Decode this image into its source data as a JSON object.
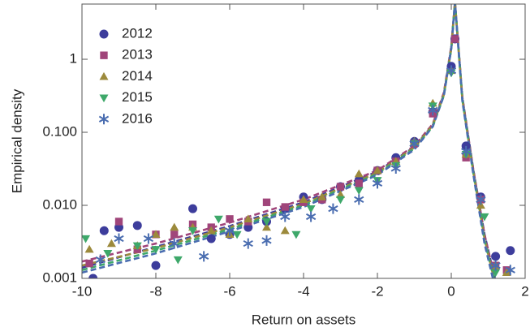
{
  "chart_data": {
    "type": "scatter",
    "x_label": "Return on assets",
    "y_label": "Empirical density",
    "y_log": true,
    "grid": false,
    "legend": "top-left",
    "xlim": [
      -10,
      2
    ],
    "xticks": [
      -10,
      -8,
      -6,
      -4,
      -2,
      0,
      2
    ],
    "ylim": [
      0.001,
      5.7
    ],
    "yticks": [
      0.001,
      {
        "value": 0.01,
        "label": "0.010"
      },
      {
        "value": 0.1,
        "label": "0.100"
      },
      1
    ],
    "fit_x": [
      -10,
      -8,
      -6,
      -4,
      -2,
      -1,
      -0.5,
      -0.2,
      0,
      0.1,
      0.3,
      0.6,
      0.9,
      1.2
    ],
    "series": [
      {
        "name": "2012",
        "marker": "circle",
        "color": "#3d3d9c",
        "x": [
          -9.7,
          -9.4,
          -9.0,
          -8.5,
          -8.0,
          -7.0,
          -6.5,
          -6.0,
          -5.5,
          -5.0,
          -4.5,
          -4.0,
          -3.5,
          -3.0,
          -2.5,
          -2.0,
          -1.5,
          -1.0,
          -0.5,
          0.0,
          0.1,
          0.4,
          0.8,
          1.2,
          1.6
        ],
        "values": [
          0.001,
          0.0045,
          0.005,
          0.0053,
          0.0015,
          0.009,
          0.0035,
          0.004,
          0.005,
          0.006,
          0.009,
          0.013,
          0.012,
          0.018,
          0.022,
          0.03,
          0.045,
          0.075,
          0.19,
          0.8,
          1.9,
          0.065,
          0.013,
          0.002,
          0.0024
        ],
        "fit_values": [
          0.0014,
          0.0027,
          0.0052,
          0.011,
          0.029,
          0.063,
          0.125,
          0.33,
          1.4,
          6,
          0.3,
          0.03,
          0.004,
          0.0009
        ]
      },
      {
        "name": "2013",
        "marker": "square",
        "color": "#a0457a",
        "x": [
          -9.8,
          -9.0,
          -8.5,
          -8.0,
          -7.5,
          -7.0,
          -6.5,
          -6.0,
          -5.5,
          -5.0,
          -4.5,
          -4.0,
          -3.5,
          -3.0,
          -2.5,
          -2.0,
          -1.5,
          -1.0,
          -0.5,
          0.1,
          0.4,
          0.8,
          1.2,
          1.5
        ],
        "values": [
          0.0016,
          0.006,
          0.0025,
          0.004,
          0.004,
          0.0055,
          0.005,
          0.0065,
          0.006,
          0.011,
          0.0095,
          0.011,
          0.012,
          0.018,
          0.02,
          0.03,
          0.04,
          0.07,
          0.18,
          1.9,
          0.045,
          0.012,
          0.0015,
          0.0013
        ],
        "fit_values": [
          0.0017,
          0.003,
          0.0058,
          0.012,
          0.03,
          0.065,
          0.13,
          0.35,
          1.5,
          6,
          0.3,
          0.03,
          0.004,
          0.0009
        ]
      },
      {
        "name": "2014",
        "marker": "triangle-up",
        "color": "#9c8a3c",
        "x": [
          -9.8,
          -9.2,
          -8.5,
          -8.0,
          -7.5,
          -7.0,
          -6.5,
          -6.0,
          -5.5,
          -5.0,
          -4.5,
          -4.0,
          -3.5,
          -3.0,
          -2.5,
          -2.0,
          -1.5,
          -1.0,
          -0.5,
          0.0,
          0.4,
          0.8,
          1.2,
          1.5
        ],
        "values": [
          0.0025,
          0.003,
          0.0028,
          0.004,
          0.005,
          0.005,
          0.0045,
          0.004,
          0.0065,
          0.005,
          0.0045,
          0.012,
          0.013,
          0.014,
          0.027,
          0.03,
          0.04,
          0.075,
          0.25,
          0.7,
          0.05,
          0.01,
          0.0015,
          0.0012
        ],
        "fit_values": [
          0.0015,
          0.0026,
          0.005,
          0.0105,
          0.028,
          0.062,
          0.125,
          0.33,
          1.4,
          6,
          0.28,
          0.028,
          0.0035,
          0.0008
        ]
      },
      {
        "name": "2015",
        "marker": "triangle-down",
        "color": "#3ea86a",
        "x": [
          -9.9,
          -9.3,
          -8.5,
          -8.0,
          -7.4,
          -7.0,
          -6.3,
          -5.8,
          -5.0,
          -4.2,
          -3.8,
          -3.0,
          -2.5,
          -2.0,
          -1.5,
          -1.0,
          -0.5,
          0.0,
          0.4,
          0.9,
          1.2
        ],
        "values": [
          0.0035,
          0.0022,
          0.0028,
          0.0025,
          0.0018,
          0.0045,
          0.0065,
          0.004,
          0.006,
          0.004,
          0.009,
          0.012,
          0.016,
          0.022,
          0.035,
          0.07,
          0.23,
          0.65,
          0.05,
          0.007,
          0.0012
        ],
        "fit_values": [
          0.0013,
          0.0024,
          0.0047,
          0.01,
          0.027,
          0.06,
          0.12,
          0.32,
          1.4,
          6,
          0.28,
          0.027,
          0.0033,
          0.0008
        ]
      },
      {
        "name": "2016",
        "marker": "star",
        "color": "#4a6db0",
        "x": [
          -9.5,
          -9.0,
          -8.2,
          -7.5,
          -6.7,
          -6.0,
          -5.5,
          -5.0,
          -4.5,
          -3.8,
          -3.2,
          -2.5,
          -2.0,
          -1.5,
          -1.0,
          -0.5,
          0.0,
          0.4,
          0.8,
          1.2,
          1.6
        ],
        "values": [
          0.0018,
          0.0035,
          0.0035,
          0.003,
          0.002,
          0.0045,
          0.003,
          0.0033,
          0.007,
          0.007,
          0.009,
          0.012,
          0.02,
          0.032,
          0.07,
          0.2,
          0.7,
          0.055,
          0.012,
          0.0015,
          0.0013
        ],
        "fit_values": [
          0.0012,
          0.0022,
          0.0044,
          0.0095,
          0.026,
          0.058,
          0.12,
          0.32,
          1.4,
          6,
          0.27,
          0.026,
          0.003,
          0.0007
        ]
      }
    ]
  }
}
